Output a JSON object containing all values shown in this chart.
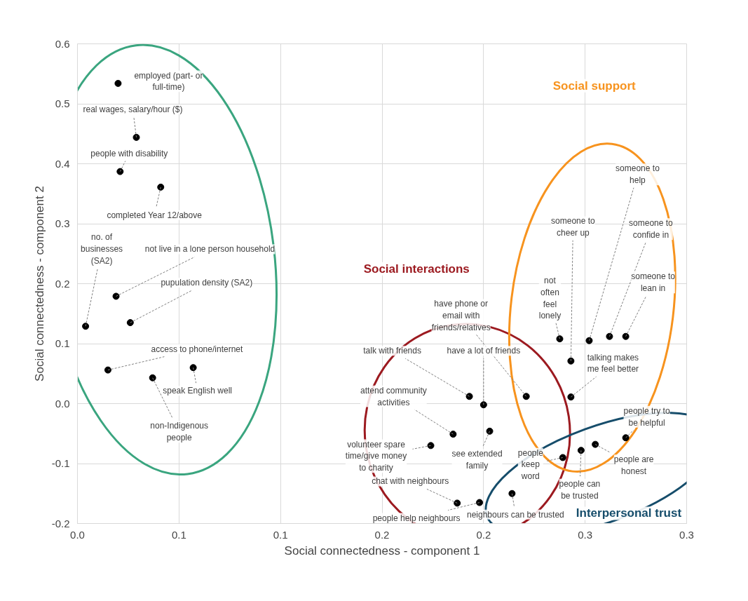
{
  "chart_data": {
    "type": "scatter",
    "xlabel": "Social connectedness - component 1",
    "ylabel": "Social connectedness - component 2",
    "xlim": [
      0,
      0.3
    ],
    "ylim": [
      -0.2,
      0.6
    ],
    "xticks": [
      {
        "value": 0,
        "label": "0.0"
      },
      {
        "value": 0.05,
        "label": "0.1"
      },
      {
        "value": 0.1,
        "label": "0.1"
      },
      {
        "value": 0.15,
        "label": "0.2"
      },
      {
        "value": 0.2,
        "label": "0.2"
      },
      {
        "value": 0.25,
        "label": "0.3"
      },
      {
        "value": 0.3,
        "label": "0.3"
      }
    ],
    "yticks": [
      -0.2,
      -0.1,
      {
        "value": 0,
        "label": "0.0"
      },
      0.1,
      0.2,
      0.3,
      0.4,
      0.5,
      0.6
    ],
    "grid": true,
    "marker": "circle",
    "series": [
      {
        "color": "#000000",
        "x": [
          0.02,
          0.029,
          0.021,
          0.041,
          0.004,
          0.019,
          0.026,
          0.015,
          0.057,
          0.037,
          0.193,
          0.2,
          0.221,
          0.185,
          0.203,
          0.174,
          0.187,
          0.198,
          0.2375,
          0.243,
          0.243,
          0.252,
          0.262,
          0.27,
          0.27,
          0.255,
          0.248,
          0.239,
          0.214
        ],
        "values": [
          0.534,
          0.444,
          0.387,
          0.361,
          0.129,
          0.179,
          0.135,
          0.056,
          0.06,
          0.043,
          0.012,
          -0.002,
          0.012,
          -0.051,
          -0.046,
          -0.07,
          -0.166,
          -0.165,
          0.108,
          0.071,
          0.011,
          0.105,
          0.112,
          0.112,
          -0.057,
          -0.068,
          -0.078,
          -0.09,
          -0.15
        ]
      }
    ],
    "annotations": [
      {
        "text": "employed (part- or full-time)",
        "x": 0.02,
        "y": 0.534
      },
      {
        "text": "real wages, salary/hour ($)",
        "x": 0.029,
        "y": 0.444
      },
      {
        "text": "people with disability",
        "x": 0.021,
        "y": 0.387
      },
      {
        "text": "completed Year 12/above",
        "x": 0.041,
        "y": 0.361
      },
      {
        "text": "no. of businesses (SA2)",
        "x": 0.004,
        "y": 0.129
      },
      {
        "text": "not live in a lone person household",
        "x": 0.019,
        "y": 0.179
      },
      {
        "text": "pupulation density (SA2)",
        "x": 0.026,
        "y": 0.135
      },
      {
        "text": "access to phone/internet",
        "x": 0.015,
        "y": 0.056
      },
      {
        "text": "speak English well",
        "x": 0.057,
        "y": 0.06
      },
      {
        "text": "non-Indigenous people",
        "x": 0.037,
        "y": 0.043
      },
      {
        "text": "talk with friends",
        "x": 0.193,
        "y": 0.012
      },
      {
        "text": "have a lot of friends",
        "x": 0.2,
        "y": -0.002
      },
      {
        "text": "have phone or email with friends/relatives",
        "x": 0.221,
        "y": 0.012
      },
      {
        "text": "attend community activities",
        "x": 0.185,
        "y": -0.051
      },
      {
        "text": "see extended family",
        "x": 0.203,
        "y": -0.046
      },
      {
        "text": "volunteer spare time/give money to charity",
        "x": 0.174,
        "y": -0.07
      },
      {
        "text": "chat with neighbours",
        "x": 0.187,
        "y": -0.166
      },
      {
        "text": "people help neighbours",
        "x": 0.198,
        "y": -0.165
      },
      {
        "text": "not often feel lonely",
        "x": 0.2375,
        "y": 0.108
      },
      {
        "text": "someone to cheer up",
        "x": 0.243,
        "y": 0.071
      },
      {
        "text": "talking makes me feel better",
        "x": 0.243,
        "y": 0.011
      },
      {
        "text": "someone to help",
        "x": 0.252,
        "y": 0.105
      },
      {
        "text": "someone to confide in",
        "x": 0.262,
        "y": 0.112
      },
      {
        "text": "someone to lean in",
        "x": 0.27,
        "y": 0.112
      },
      {
        "text": "people try to be helpful",
        "x": 0.27,
        "y": -0.057
      },
      {
        "text": "people are honest",
        "x": 0.255,
        "y": -0.068
      },
      {
        "text": "people can be trusted",
        "x": 0.248,
        "y": -0.078
      },
      {
        "text": "people keep word",
        "x": 0.239,
        "y": -0.09
      },
      {
        "text": "neighbours can be trusted",
        "x": 0.214,
        "y": -0.15
      },
      "Social interactions",
      "Social support",
      "Interpersonal trust"
    ]
  }
}
